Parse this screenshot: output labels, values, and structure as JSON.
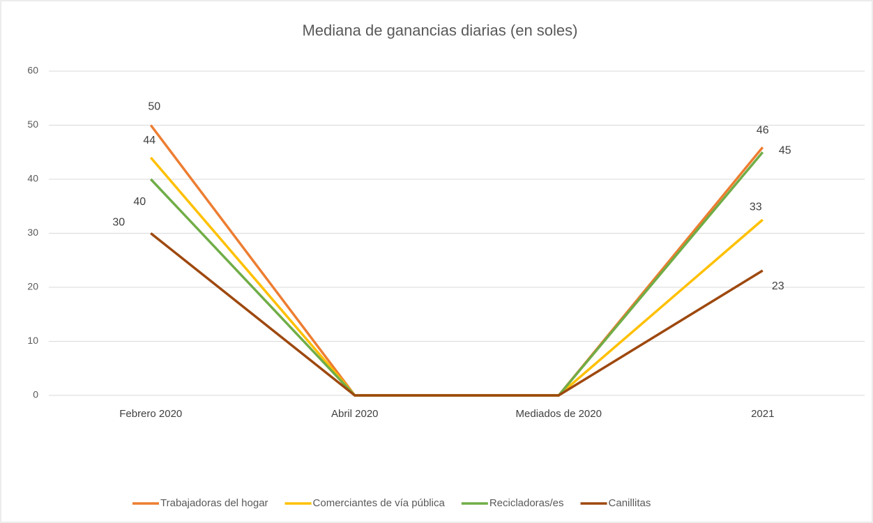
{
  "chart_data": {
    "type": "line",
    "title": "Mediana de ganancias diarias (en soles)",
    "categories": [
      "Febrero 2020",
      "Abril 2020",
      "Mediados de 2020",
      "2021"
    ],
    "series": [
      {
        "name": "Trabajadoras del hogar",
        "color": "#ed7d31",
        "values": [
          50,
          0,
          0,
          45.9
        ],
        "value_labels": [
          "50",
          null,
          null,
          "46"
        ]
      },
      {
        "name": "Comerciantes de vía pública",
        "color": "#ffc000",
        "values": [
          44,
          0,
          0,
          32.5
        ],
        "value_labels": [
          "44",
          null,
          null,
          "33"
        ]
      },
      {
        "name": "Recicladoras/es",
        "color": "#70ad47",
        "values": [
          40,
          0,
          0,
          45
        ],
        "value_labels": [
          "40",
          null,
          null,
          "45"
        ]
      },
      {
        "name": "Canillitas",
        "color": "#9e480e",
        "values": [
          30,
          0,
          0,
          23.1
        ],
        "value_labels": [
          "30",
          null,
          null,
          "23"
        ]
      }
    ],
    "ylim": [
      0,
      60
    ],
    "yticks": [
      0,
      10,
      20,
      30,
      40,
      50,
      60
    ],
    "grid": true,
    "legend": "bottom"
  }
}
